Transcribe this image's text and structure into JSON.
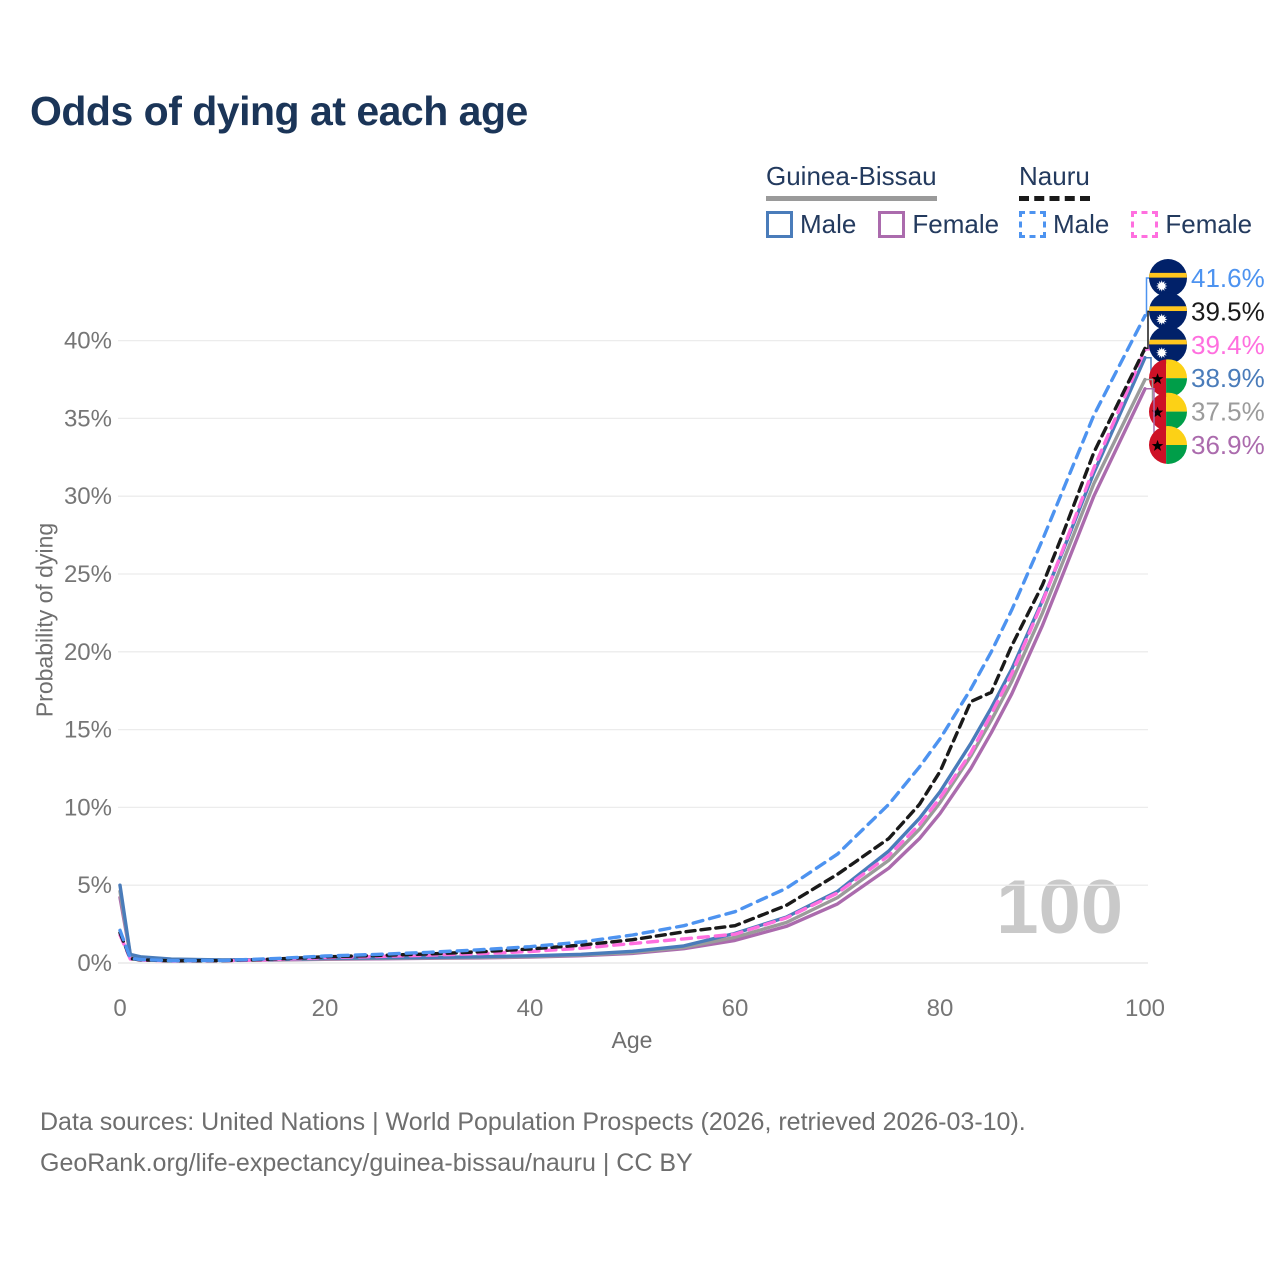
{
  "title": "Odds of dying at each age",
  "watermark": "100",
  "legend": {
    "groups": [
      {
        "label": "Guinea-Bissau",
        "style": "solid",
        "underline_color": "#9a9a9a",
        "items": [
          {
            "label": "Male",
            "color": "#4a7cba",
            "dashed": false
          },
          {
            "label": "Female",
            "color": "#ab6bad",
            "dashed": false
          }
        ]
      },
      {
        "label": "Nauru",
        "style": "dashed",
        "underline_color": "#1a1a1a",
        "items": [
          {
            "label": "Male",
            "color": "#4d93f0",
            "dashed": true
          },
          {
            "label": "Female",
            "color": "#ff6fdf",
            "dashed": true
          }
        ]
      }
    ]
  },
  "flags": {
    "nauru": {
      "blue": "#012169",
      "yellow": "#ffc61e",
      "white": "#ffffff"
    },
    "guinea_bissau": {
      "red": "#ce1126",
      "yellow": "#fcd116",
      "green": "#009e49",
      "black": "#000000"
    }
  },
  "chart_data": {
    "type": "line",
    "title": "Odds of dying at each age",
    "xlabel": "Age",
    "ylabel": "Probability of dying",
    "xlim": [
      0,
      100
    ],
    "ylim": [
      0,
      43
    ],
    "grid": "horizontal",
    "legend_position": "top-right",
    "xticks": [
      0,
      20,
      40,
      60,
      80,
      100
    ],
    "ytick_values": [
      0,
      5,
      10,
      15,
      20,
      25,
      30,
      35,
      40
    ],
    "ytick_labels": [
      "0%",
      "5%",
      "10%",
      "15%",
      "20%",
      "25%",
      "30%",
      "35%",
      "40%"
    ],
    "x": [
      0,
      1,
      2,
      5,
      10,
      15,
      20,
      25,
      30,
      35,
      40,
      45,
      50,
      55,
      60,
      65,
      70,
      75,
      78,
      80,
      83,
      85,
      87,
      90,
      92,
      95,
      100
    ],
    "series": [
      {
        "name": "Nauru Male",
        "country": "Nauru",
        "sex": "Male",
        "color": "#4d93f0",
        "dashed": true,
        "dash": "10 7",
        "flag": "nauru",
        "end_label": "41.6%",
        "end_value": 41.6,
        "values": [
          2.1,
          0.3,
          0.22,
          0.15,
          0.16,
          0.28,
          0.45,
          0.55,
          0.68,
          0.85,
          1.05,
          1.35,
          1.8,
          2.4,
          3.3,
          4.8,
          7.0,
          10.2,
          12.6,
          14.4,
          17.6,
          20.0,
          22.7,
          27.2,
          30.4,
          35.2,
          41.6
        ]
      },
      {
        "name": "Nauru Both Sexes",
        "country": "Nauru",
        "sex": "Both",
        "color": "#1a1a1a",
        "dashed": true,
        "dash": "9 6",
        "flag": "nauru",
        "end_label": "39.5%",
        "end_value": 39.5,
        "values": [
          1.95,
          0.28,
          0.2,
          0.14,
          0.15,
          0.25,
          0.4,
          0.48,
          0.58,
          0.72,
          0.9,
          1.15,
          1.5,
          2.0,
          2.4,
          3.7,
          5.7,
          8.0,
          10.2,
          12.3,
          16.8,
          17.4,
          20.4,
          24.3,
          27.6,
          32.8,
          39.5
        ]
      },
      {
        "name": "Nauru Female",
        "country": "Nauru",
        "sex": "Female",
        "color": "#ff6fdf",
        "dashed": true,
        "dash": "10 7",
        "flag": "nauru",
        "end_label": "39.4%",
        "end_value": 39.4,
        "values": [
          1.8,
          0.26,
          0.19,
          0.13,
          0.14,
          0.22,
          0.35,
          0.42,
          0.5,
          0.6,
          0.74,
          0.95,
          1.25,
          1.55,
          1.85,
          2.9,
          4.5,
          6.9,
          8.9,
          10.6,
          13.5,
          16.0,
          18.6,
          23.2,
          26.6,
          31.8,
          39.4
        ]
      },
      {
        "name": "Guinea-Bissau Male",
        "country": "Guinea-Bissau",
        "sex": "Male",
        "color": "#4a7cba",
        "dashed": false,
        "flag": "guinea_bissau",
        "end_label": "38.9%",
        "end_value": 38.9,
        "values": [
          5.0,
          0.55,
          0.4,
          0.25,
          0.2,
          0.22,
          0.3,
          0.33,
          0.36,
          0.4,
          0.46,
          0.56,
          0.75,
          1.1,
          1.9,
          2.95,
          4.6,
          7.2,
          9.3,
          11.0,
          14.1,
          16.4,
          18.9,
          23.3,
          26.5,
          31.5,
          38.9
        ]
      },
      {
        "name": "Guinea-Bissau Both Sexes",
        "country": "Guinea-Bissau",
        "sex": "Both",
        "color": "#9b9b9b",
        "dashed": false,
        "flag": "guinea_bissau",
        "end_label": "37.5%",
        "end_value": 37.5,
        "values": [
          4.6,
          0.52,
          0.38,
          0.23,
          0.19,
          0.2,
          0.27,
          0.3,
          0.33,
          0.36,
          0.42,
          0.51,
          0.68,
          1.0,
          1.65,
          2.6,
          4.2,
          6.6,
          8.6,
          10.3,
          13.3,
          15.6,
          18.1,
          22.5,
          25.8,
          30.8,
          37.5
        ]
      },
      {
        "name": "Guinea-Bissau Female",
        "country": "Guinea-Bissau",
        "sex": "Female",
        "color": "#ab6bad",
        "dashed": false,
        "flag": "guinea_bissau",
        "end_label": "36.9%",
        "end_value": 36.9,
        "values": [
          4.2,
          0.5,
          0.36,
          0.22,
          0.18,
          0.19,
          0.24,
          0.27,
          0.3,
          0.33,
          0.38,
          0.47,
          0.62,
          0.92,
          1.45,
          2.35,
          3.8,
          6.1,
          8.0,
          9.6,
          12.5,
          14.8,
          17.3,
          21.7,
          25.0,
          30.0,
          36.9
        ]
      }
    ]
  },
  "footer": {
    "line1": "Data sources: United Nations | World Population Prospects (2026, retrieved 2026-03-10).",
    "line2": "GeoRank.org/life-expectancy/guinea-bissau/nauru | CC BY"
  }
}
